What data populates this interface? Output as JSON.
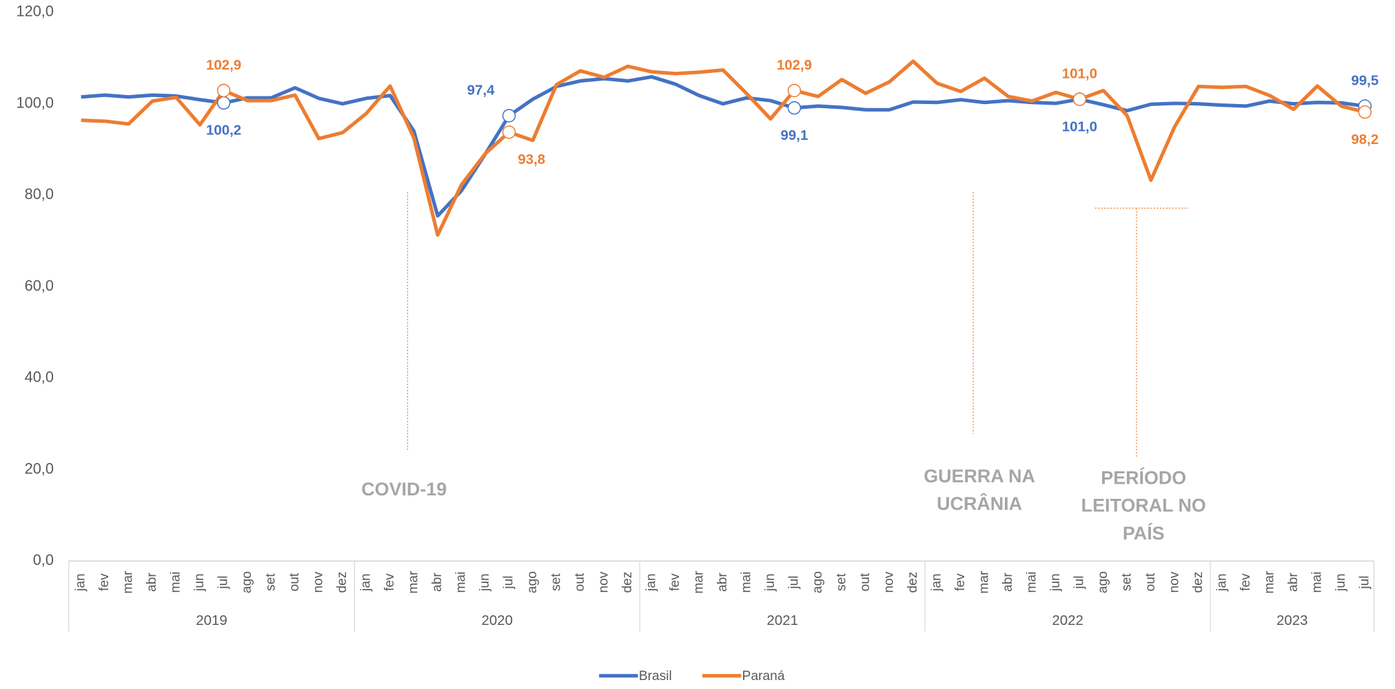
{
  "chart_data": {
    "type": "line",
    "groups": [
      {
        "name": "2019",
        "categories": [
          "jan",
          "fev",
          "mar",
          "abr",
          "mai",
          "jun",
          "jul",
          "ago",
          "set",
          "out",
          "nov",
          "dez"
        ]
      },
      {
        "name": "2020",
        "categories": [
          "jan",
          "fev",
          "mar",
          "abr",
          "mai",
          "jun",
          "jul",
          "ago",
          "set",
          "out",
          "nov",
          "dez"
        ]
      },
      {
        "name": "2021",
        "categories": [
          "jan",
          "fev",
          "mar",
          "abr",
          "mai",
          "jun",
          "jul",
          "ago",
          "set",
          "out",
          "nov",
          "dez"
        ]
      },
      {
        "name": "2022",
        "categories": [
          "jan",
          "fev",
          "mar",
          "abr",
          "mai",
          "jun",
          "jul",
          "ago",
          "set",
          "out",
          "nov",
          "dez"
        ]
      },
      {
        "name": "2023",
        "categories": [
          "jan",
          "fev",
          "mar",
          "abr",
          "mai",
          "jun",
          "jul"
        ]
      }
    ],
    "series": [
      {
        "name": "Brasil",
        "color": "#4472c4",
        "values": [
          101.5,
          101.9,
          101.5,
          101.9,
          101.7,
          100.9,
          100.2,
          101.3,
          101.3,
          103.5,
          101.2,
          100.0,
          101.2,
          101.8,
          94.0,
          75.5,
          81.0,
          89.0,
          97.4,
          101.0,
          103.8,
          105.0,
          105.5,
          105.0,
          105.9,
          104.3,
          101.8,
          100.0,
          101.3,
          100.7,
          99.1,
          99.5,
          99.2,
          98.7,
          98.7,
          100.4,
          100.3,
          100.9,
          100.3,
          100.7,
          100.3,
          100.1,
          101.0,
          99.8,
          98.5,
          99.9,
          100.1,
          100.0,
          99.7,
          99.5,
          100.6,
          100.0,
          100.3,
          100.2,
          99.5
        ],
        "value_labels": [
          null,
          null,
          null,
          null,
          null,
          null,
          "100,2",
          null,
          null,
          null,
          null,
          null,
          null,
          null,
          null,
          null,
          null,
          null,
          "97,4",
          null,
          null,
          null,
          null,
          null,
          null,
          null,
          null,
          null,
          null,
          null,
          "99,1",
          null,
          null,
          null,
          null,
          null,
          null,
          null,
          null,
          null,
          null,
          null,
          "101,0",
          null,
          null,
          null,
          null,
          null,
          null,
          null,
          null,
          null,
          null,
          null,
          "99,5"
        ]
      },
      {
        "name": "Paraná",
        "color": "#ed7d31",
        "values": [
          96.4,
          96.2,
          95.6,
          100.6,
          101.4,
          95.4,
          102.9,
          100.7,
          100.7,
          101.9,
          92.4,
          93.7,
          97.9,
          103.9,
          92.5,
          71.3,
          82.3,
          89.1,
          93.8,
          92.0,
          104.2,
          107.2,
          105.8,
          108.2,
          107.0,
          106.6,
          106.9,
          107.4,
          102.2,
          96.7,
          102.9,
          101.6,
          105.3,
          102.3,
          104.8,
          109.3,
          104.5,
          102.7,
          105.6,
          101.6,
          100.6,
          102.5,
          101.0,
          102.9,
          97.4,
          83.3,
          95.0,
          103.8,
          103.6,
          103.8,
          101.8,
          98.8,
          103.9,
          99.5,
          98.2
        ],
        "value_labels": [
          null,
          null,
          null,
          null,
          null,
          null,
          "102,9",
          null,
          null,
          null,
          null,
          null,
          null,
          null,
          null,
          null,
          null,
          null,
          "93,8",
          null,
          null,
          null,
          null,
          null,
          null,
          null,
          null,
          null,
          null,
          null,
          "102,9",
          null,
          null,
          null,
          null,
          null,
          null,
          null,
          null,
          null,
          null,
          null,
          "101,0",
          null,
          null,
          null,
          null,
          null,
          null,
          null,
          null,
          null,
          null,
          null,
          "98,2"
        ]
      }
    ],
    "ylim": [
      0,
      120
    ],
    "yticks": [
      {
        "value": 0,
        "label": "0,0"
      },
      {
        "value": 20,
        "label": "20,0"
      },
      {
        "value": 40,
        "label": "40,0"
      },
      {
        "value": 60,
        "label": "60,0"
      },
      {
        "value": 80,
        "label": "80,0"
      },
      {
        "value": 100,
        "label": "100,0"
      },
      {
        "value": 120,
        "label": "120,0"
      }
    ],
    "grid": false,
    "legend": "bottom",
    "annotations": [
      {
        "lines": [
          "COVID-19"
        ]
      },
      {
        "lines": [
          "GUERRA NA",
          "UCRÂNIA"
        ]
      },
      {
        "lines": [
          "PERÍODO",
          "LEITORAL NO",
          "PAÍS"
        ]
      }
    ]
  }
}
